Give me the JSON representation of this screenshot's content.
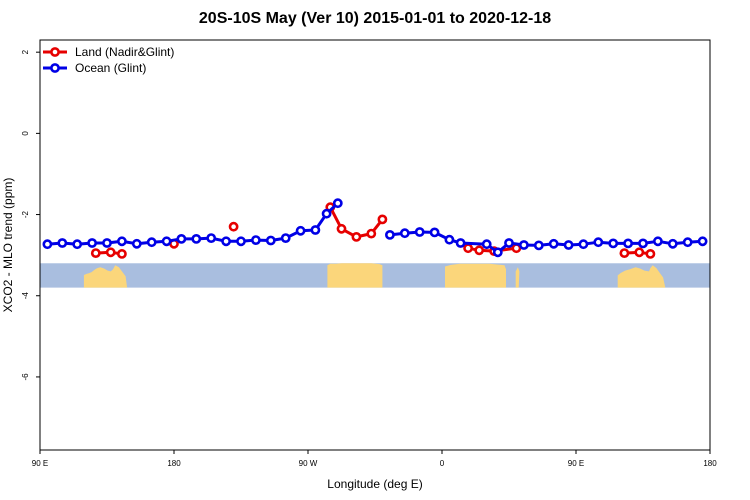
{
  "title": "20S-10S May (Ver 10)   2015-01-01 to 2020-12-18",
  "colors": {
    "land": "#e60000",
    "ocean": "#0000e6",
    "map_ocean": "#a9bedf",
    "map_land": "#fbd67b"
  },
  "chart_data": {
    "type": "line",
    "title": "20S-10S May (Ver 10)   2015-01-01 to 2020-12-18",
    "xlabel": "Longitude (deg E)",
    "ylabel": "XCO2 - MLO trend (ppm)",
    "xlim": [
      90,
      540
    ],
    "ylim": [
      -7.8,
      2.3
    ],
    "x_ticks": [
      {
        "value": 90,
        "label": "90 E"
      },
      {
        "value": 180,
        "label": "180"
      },
      {
        "value": 270,
        "label": "90 W"
      },
      {
        "value": 360,
        "label": "0"
      },
      {
        "value": 450,
        "label": "90 E"
      },
      {
        "value": 540,
        "label": "180"
      }
    ],
    "y_ticks": [
      {
        "value": 2,
        "label": "2"
      },
      {
        "value": 0,
        "label": "0"
      },
      {
        "value": -2,
        "label": "-2"
      },
      {
        "value": -4,
        "label": "-4"
      },
      {
        "value": -6,
        "label": "-6"
      }
    ],
    "legend_position": "top-left",
    "series": [
      {
        "name": "Land (Nadir&Glint)",
        "color": "#e60000",
        "segments": [
          [
            [
              127.5,
              -2.95
            ],
            [
              137.5,
              -2.93
            ],
            [
              145,
              -2.97
            ]
          ],
          [
            [
              180,
              -2.72
            ]
          ],
          [
            [
              220,
              -2.3
            ]
          ],
          [
            [
              285,
              -1.82
            ],
            [
              292.5,
              -2.35
            ],
            [
              302.5,
              -2.55
            ],
            [
              312.5,
              -2.47
            ],
            [
              320,
              -2.12
            ]
          ],
          [
            [
              377.5,
              -2.83
            ],
            [
              385,
              -2.88
            ],
            [
              395,
              -2.9
            ],
            [
              410,
              -2.83
            ]
          ],
          [
            [
              482.5,
              -2.95
            ],
            [
              492.5,
              -2.93
            ],
            [
              500,
              -2.97
            ]
          ]
        ]
      },
      {
        "name": "Ocean (Glint)",
        "color": "#0000e6",
        "segments": [
          [
            [
              95,
              -2.73
            ],
            [
              105,
              -2.7
            ],
            [
              115,
              -2.73
            ],
            [
              125,
              -2.7
            ],
            [
              135,
              -2.7
            ],
            [
              145,
              -2.66
            ],
            [
              155,
              -2.72
            ],
            [
              165,
              -2.68
            ],
            [
              175,
              -2.66
            ],
            [
              185,
              -2.6
            ],
            [
              195,
              -2.6
            ],
            [
              205,
              -2.58
            ],
            [
              215,
              -2.66
            ],
            [
              225,
              -2.66
            ],
            [
              235,
              -2.63
            ],
            [
              245,
              -2.64
            ],
            [
              255,
              -2.58
            ],
            [
              265,
              -2.4
            ],
            [
              275,
              -2.38
            ],
            [
              282.5,
              -1.98
            ],
            [
              290,
              -1.72
            ]
          ],
          [
            [
              325,
              -2.5
            ],
            [
              335,
              -2.46
            ],
            [
              345,
              -2.43
            ],
            [
              355,
              -2.44
            ],
            [
              365,
              -2.62
            ],
            [
              372.5,
              -2.7
            ],
            [
              390,
              -2.73
            ],
            [
              397.5,
              -2.93
            ],
            [
              405,
              -2.7
            ],
            [
              415,
              -2.75
            ],
            [
              425,
              -2.76
            ],
            [
              435,
              -2.72
            ],
            [
              445,
              -2.75
            ],
            [
              455,
              -2.73
            ],
            [
              465,
              -2.68
            ],
            [
              475,
              -2.71
            ],
            [
              485,
              -2.71
            ],
            [
              495,
              -2.71
            ],
            [
              505,
              -2.66
            ],
            [
              515,
              -2.72
            ],
            [
              525,
              -2.68
            ],
            [
              535,
              -2.66
            ]
          ]
        ]
      }
    ],
    "map_band": {
      "y_range": [
        -3.8,
        -3.2
      ],
      "land_regions": [
        [
          [
            119.5,
            -3.8
          ],
          [
            119.5,
            -3.49
          ],
          [
            121.5,
            -3.46
          ],
          [
            122.5,
            -3.45
          ],
          [
            124.5,
            -3.42
          ],
          [
            127,
            -3.35
          ],
          [
            128.5,
            -3.32
          ],
          [
            130.5,
            -3.3
          ],
          [
            133,
            -3.33
          ],
          [
            135.5,
            -3.38
          ],
          [
            137.5,
            -3.4
          ],
          [
            139,
            -3.35
          ],
          [
            140.5,
            -3.25
          ],
          [
            143,
            -3.3
          ],
          [
            145.5,
            -3.42
          ],
          [
            147.5,
            -3.52
          ],
          [
            148.5,
            -3.8
          ]
        ],
        [
          [
            283,
            -3.8
          ],
          [
            283,
            -3.25
          ],
          [
            285,
            -3.21
          ],
          [
            289,
            -3.21
          ],
          [
            292.5,
            -3.2
          ],
          [
            312.5,
            -3.2
          ],
          [
            318,
            -3.22
          ],
          [
            320,
            -3.25
          ],
          [
            320,
            -3.8
          ]
        ],
        [
          [
            403,
            -3.8
          ],
          [
            403,
            -3.35
          ],
          [
            402,
            -3.25
          ],
          [
            392,
            -3.21
          ],
          [
            372,
            -3.21
          ],
          [
            366,
            -3.24
          ],
          [
            362,
            -3.28
          ],
          [
            362,
            -3.8
          ]
        ],
        [
          [
            409.5,
            -3.8
          ],
          [
            409.5,
            -3.4
          ],
          [
            411,
            -3.3
          ],
          [
            412,
            -3.4
          ],
          [
            411.5,
            -3.8
          ]
        ],
        [
          [
            478,
            -3.8
          ],
          [
            478,
            -3.5
          ],
          [
            480,
            -3.44
          ],
          [
            483,
            -3.38
          ],
          [
            486,
            -3.35
          ],
          [
            490,
            -3.3
          ],
          [
            493,
            -3.33
          ],
          [
            496,
            -3.38
          ],
          [
            499,
            -3.4
          ],
          [
            500,
            -3.32
          ],
          [
            501.5,
            -3.25
          ],
          [
            504,
            -3.32
          ],
          [
            506.5,
            -3.45
          ],
          [
            508.5,
            -3.55
          ],
          [
            510,
            -3.8
          ]
        ]
      ]
    }
  }
}
